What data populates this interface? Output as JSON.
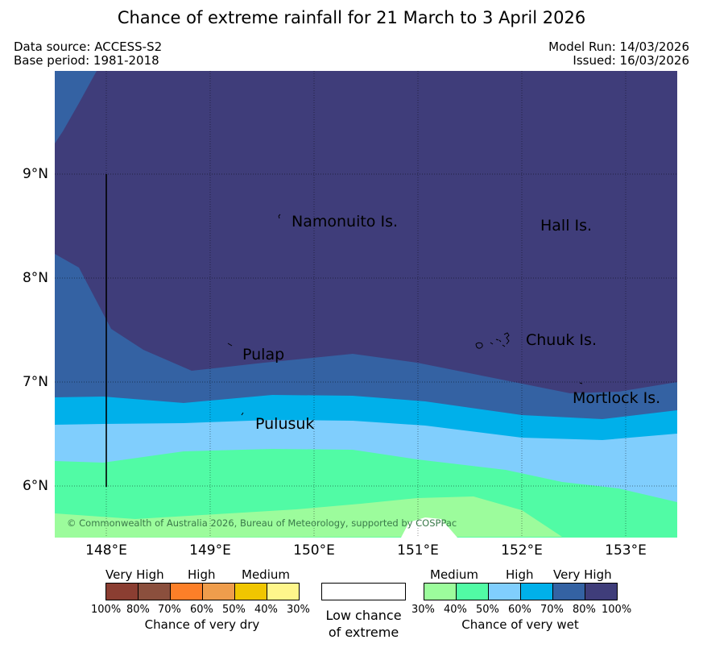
{
  "title": "Chance of extreme rainfall for 21 March to 3 April 2026",
  "meta": {
    "data_source": "Data source: ACCESS-S2",
    "base_period": "Base period: 1981-2018",
    "model_run": "Model Run: 14/03/2026",
    "issued": "Issued: 16/03/2026"
  },
  "map": {
    "lon_range": [
      147.5,
      153.5
    ],
    "lat_range": [
      5.5,
      10.0
    ],
    "grid": true,
    "y_ticks": [
      "9°N",
      "8°N",
      "7°N",
      "6°N"
    ],
    "x_ticks": [
      "148°E",
      "149°E",
      "150°E",
      "151°E",
      "152°E",
      "153°E"
    ],
    "places": [
      "Namonuito Is.",
      "Hall Is.",
      "Pulap",
      "Chuuk Is.",
      "Mortlock Is.",
      "Pulusuk"
    ],
    "copyright": "© Commonwealth of Australia 2026, Bureau of Meteorology, supported by COSPPac",
    "colors": {
      "very_wet_80_100": "#3f3d7a",
      "very_wet_70_80": "#3462a3",
      "very_wet_60_70": "#00b0ea",
      "very_wet_50_60": "#80cefd",
      "very_wet_40_50": "#51fba5",
      "very_wet_30_40": "#9cfc9c",
      "low": "#ffffff"
    }
  },
  "legend": {
    "dry": {
      "categories": [
        "Very High",
        "High",
        "Medium"
      ],
      "percentages": [
        "100%",
        "80%",
        "70%",
        "60%",
        "50%",
        "40%",
        "30%"
      ],
      "colors": [
        "#8b3e32",
        "#8b4f3d",
        "#fc7f28",
        "#ef9d4c",
        "#f0c600",
        "#fef68b"
      ],
      "caption": "Chance of very dry"
    },
    "low": {
      "caption_line1": "Low chance",
      "caption_line2": "of extreme",
      "color": "#ffffff"
    },
    "wet": {
      "categories": [
        "Medium",
        "High",
        "Very High"
      ],
      "percentages": [
        "30%",
        "40%",
        "50%",
        "60%",
        "70%",
        "80%",
        "100%"
      ],
      "colors": [
        "#9cfc9c",
        "#51fba5",
        "#80cefd",
        "#00b0ea",
        "#3462a3",
        "#3f3d7a"
      ],
      "caption": "Chance of very wet"
    }
  }
}
